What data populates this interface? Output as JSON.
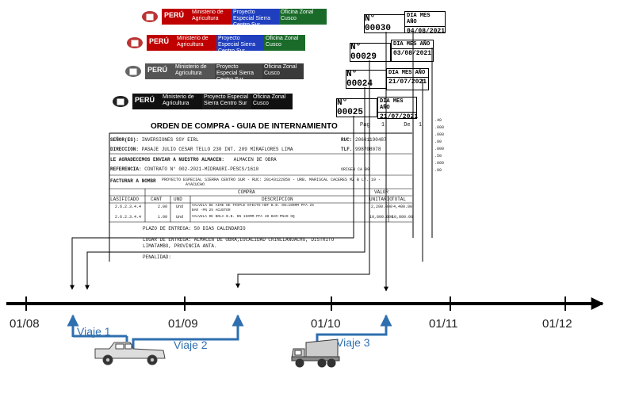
{
  "documents": [
    {
      "number": "N° 00030",
      "date_header": "DIA MES AÑO",
      "date": "04/08/2021"
    },
    {
      "number": "N° 00029",
      "date_header": "DIA MES AÑO",
      "date": "03/08/2021"
    },
    {
      "number": "N° 00024",
      "date_header": "DIA MES AÑO",
      "date": "21/07/2021"
    },
    {
      "number": "N° 00025",
      "date_header": "DIA MES AÑO",
      "date": "21/07/2021"
    }
  ],
  "header": {
    "country": "PERÚ",
    "ministry": "Ministerio de Agricultura",
    "project": "Proyecto Especial Sierra Centro Sur",
    "office": "Oficina Zonal Cusco"
  },
  "order": {
    "title": "ORDEN DE COMPRA - GUIA DE INTERNAMIENTO",
    "page_label": "Pag",
    "page_num": "1",
    "of_label": "De",
    "of_num": "1",
    "senor_label": "SEÑOR(ES):",
    "senor_value": "INVERSIONES SSY EIRL",
    "ruc_label": "RUC:",
    "ruc_value": "20601190487",
    "direccion_label": "DIRECCION:",
    "direccion_value": "PASAJE JULIO CESAR TELLO 230 INT. 209 MIRAFLORES LIMA",
    "tlf_label": "TLF.",
    "tlf_value": "998708078",
    "enviar_label": "LE AGRADECEMOS ENVIAR A NUESTRO ALMACEN:",
    "enviar_value": "ALMACEN DE OBRA",
    "referencia_label": "REFERENCIA:",
    "referencia_value": "CONTRATO N° 002-2021-MIDRAGRI-PESCS/1610",
    "origen_label": "ORIGEN CA 99",
    "facturar_label": "FACTURAR A NOMBR",
    "facturar_value": "PROYECTO ESPECIAL SIERRA CENTRO SUR - RUC: 20143122850 - URB. MARISCAL CACERES MZ B LT. 19 -",
    "facturar_value2": "AYACUCHO",
    "compra_label": "COMPRA",
    "valor_label": "VALOR",
    "columns": [
      "LASIFICADO",
      "CANT",
      "UND",
      "DESCRIPCION",
      "UNITARIO",
      "TOTAL"
    ],
    "rows": [
      {
        "cls": "2.6.2.3.4.4",
        "cant": "2.00",
        "und": "Und",
        "desc": "VALVULA DE AIRE DE TRIPLE EFECTO HDF B.B. DN=100MM PFA 25",
        "desc2": "BAR -PN 25 ACUSTER",
        "unit": "2,200.000",
        "total": "4,400.00"
      },
      {
        "cls": "2.6.2.3.4.4",
        "cant": "1.00",
        "und": "Und",
        "desc": "VALVULA DE BOLA B.B. DN 150MM-PFA 40 BAR-PN40 SQ",
        "desc2": "",
        "unit": "10,800.000",
        "total": "10,800.00"
      }
    ],
    "plazo": "PLAZO DE ENTREGA: 50 DIAS CALENDARIO",
    "lugar": "LUGAR DE ENTREGA: ALMACEN DE OBRA,LOCALIDAD CRINLLANUACHO, DISTRITO",
    "lugar2": "LIMATAMBO, PROVINCIA ANTA.",
    "penalidad": "PENALIDAD:"
  },
  "timeline": {
    "ticks": [
      "01/08",
      "01/09",
      "01/10",
      "01/11",
      "01/12"
    ]
  },
  "trips": [
    "Viaje 1",
    "Viaje 2",
    "Viaje 3"
  ],
  "colors": {
    "trip": "#2f6faf",
    "header_red": "#c00000",
    "header_blue": "#1f3fbf",
    "header_green": "#1a6b2a"
  },
  "icons": [
    "pickup-truck-icon",
    "dump-truck-icon",
    "peru-seal-icon"
  ]
}
